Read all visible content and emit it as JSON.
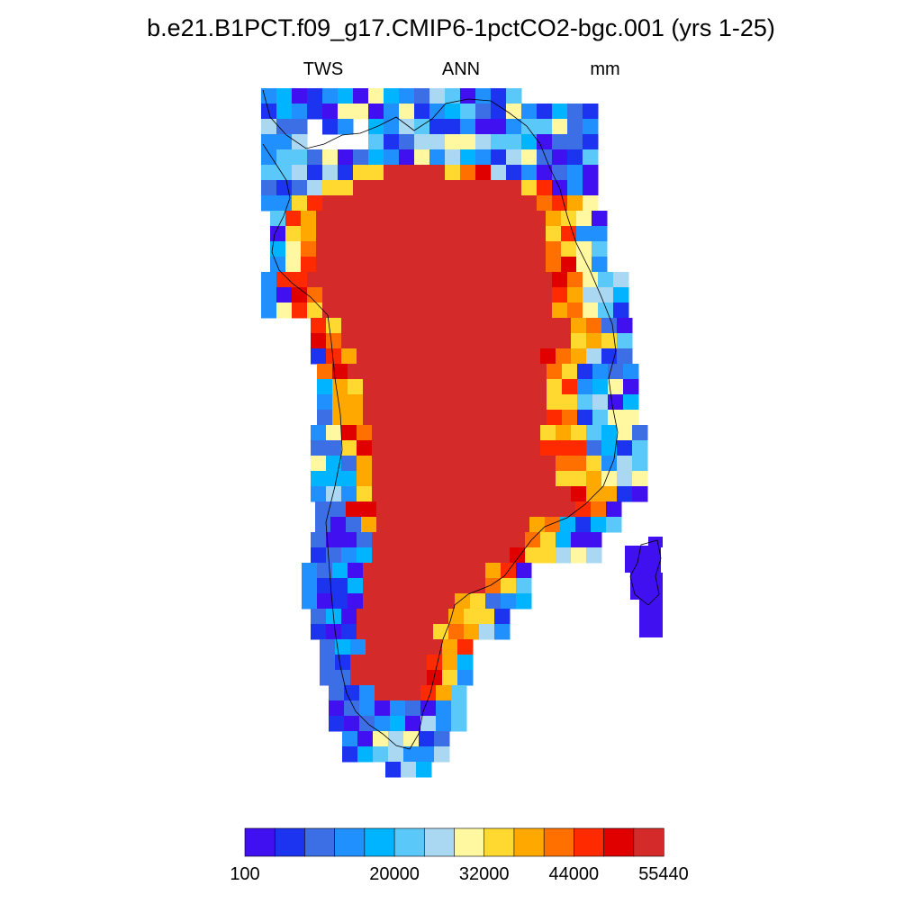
{
  "title": "b.e21.B1PCT.f09_g17.CMIP6-1pctCO2-bgc.001 (yrs 1-25)",
  "left_string": "TWS",
  "center_string": "ANN",
  "right_string": "mm",
  "colorbar": {
    "colors": [
      "#4010f0",
      "#1c34f0",
      "#3c6ee6",
      "#2090ff",
      "#00b4ff",
      "#5ac8f8",
      "#aad8f2",
      "#fff8a0",
      "#ffd830",
      "#ffa800",
      "#ff7000",
      "#ff2a00",
      "#e00000",
      "#d42a2a"
    ],
    "labels": [
      "100",
      "20000",
      "32000",
      "44000",
      "55440"
    ]
  }
}
